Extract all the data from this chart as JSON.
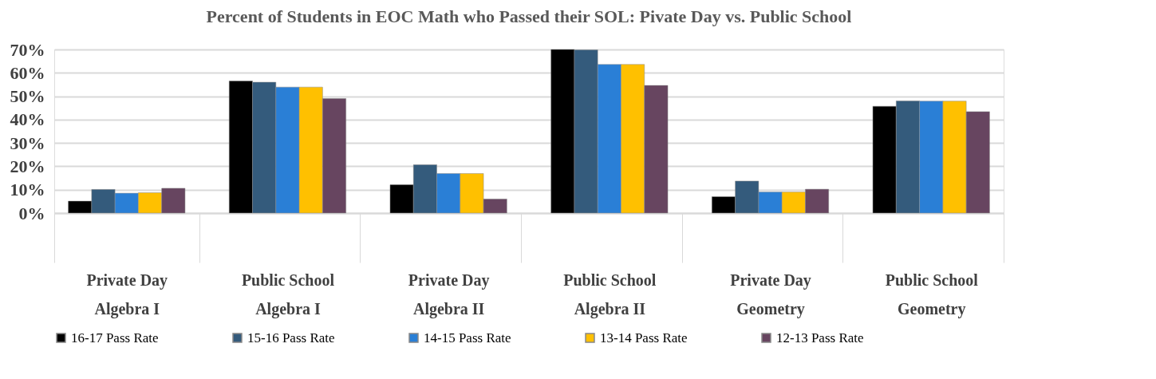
{
  "chart_data": {
    "type": "bar",
    "title": "Percent of Students in EOC Math who Passed their SOL: Pivate Day vs. Public School",
    "categories": [
      "Private Day\nAlgebra I",
      "Public School\nAlgebra I",
      "Private Day\nAlgebra II",
      "Public School\nAlgebra II",
      "Private Day\nGeometry",
      "Public School\nGeometry"
    ],
    "series": [
      {
        "name": "16-17 Pass Rate",
        "color": "#000000",
        "values": [
          5.1,
          56.5,
          12.1,
          70.0,
          7.0,
          45.7
        ]
      },
      {
        "name": "15-16 Pass Rate",
        "color": "#345b7c",
        "values": [
          10.1,
          56.0,
          20.7,
          69.8,
          13.7,
          48.0
        ]
      },
      {
        "name": "14-15 Pass Rate",
        "color": "#2a7fd6",
        "values": [
          8.5,
          53.9,
          16.9,
          63.6,
          9.0,
          47.9
        ]
      },
      {
        "name": "13-14 Pass Rate",
        "color": "#ffc000",
        "values": [
          8.7,
          53.9,
          16.9,
          63.6,
          9.0,
          47.9
        ]
      },
      {
        "name": "12-13 Pass Rate",
        "color": "#674560",
        "values": [
          10.6,
          49.0,
          6.0,
          54.6,
          10.2,
          43.4
        ]
      }
    ],
    "ylim": [
      0,
      70
    ],
    "yticks": [
      {
        "value": 0,
        "label": "0%"
      },
      {
        "value": 10,
        "label": "10%"
      },
      {
        "value": 20,
        "label": "20%"
      },
      {
        "value": 30,
        "label": "30%"
      },
      {
        "value": 40,
        "label": "40%"
      },
      {
        "value": 50,
        "label": "50%"
      },
      {
        "value": 60,
        "label": "60%"
      },
      {
        "value": 70,
        "label": "70%"
      }
    ],
    "grid": "y",
    "legend": "bottom"
  }
}
